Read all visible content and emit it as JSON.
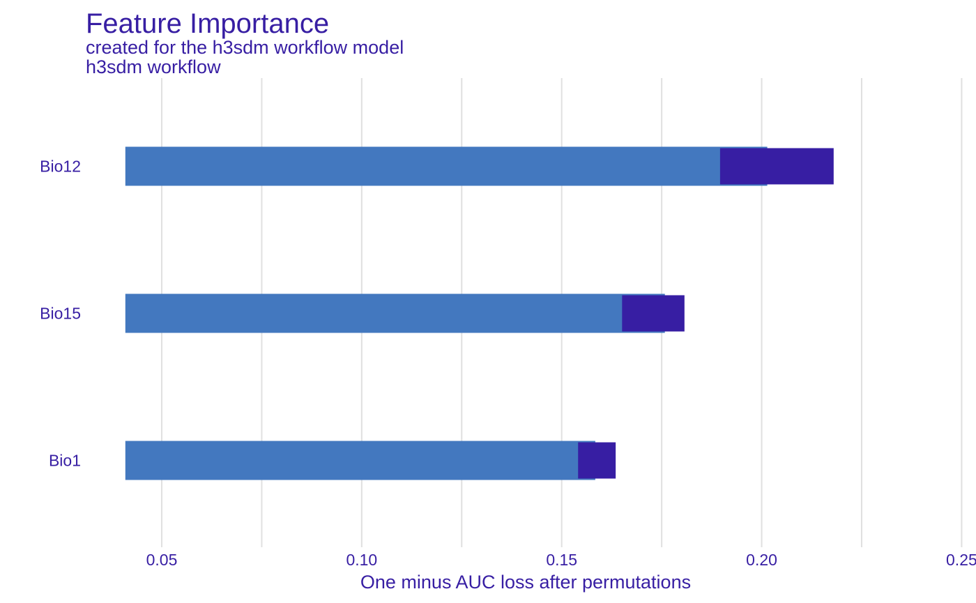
{
  "chart_data": {
    "type": "bar",
    "title": "Feature Importance",
    "subtitle_lines": [
      "created for the h3sdm workflow model",
      "h3sdm workflow"
    ],
    "xlabel": "One minus AUC loss after permutations",
    "ylabel": "",
    "baseline": 0.0409,
    "xlim": [
      0.031,
      0.255
    ],
    "xticks": [
      "0.05",
      "0.10",
      "0.15",
      "0.20",
      "0.25"
    ],
    "xtick_values": [
      0.05,
      0.1,
      0.15,
      0.2,
      0.25
    ],
    "categories": [
      "Bio12",
      "Bio15",
      "Bio1"
    ],
    "series": [
      {
        "values": [
          0.2014,
          0.1758,
          0.1584
        ]
      }
    ],
    "intervals": [
      {
        "low": 0.1896,
        "high": 0.218
      },
      {
        "low": 0.1651,
        "high": 0.1807
      },
      {
        "low": 0.1541,
        "high": 0.1635
      }
    ],
    "grid": true,
    "legend": "none",
    "colors": {
      "bar": "#4378bf",
      "interval": "#371ea3",
      "text": "#371ea3",
      "grid": "#e0e0e0"
    }
  }
}
